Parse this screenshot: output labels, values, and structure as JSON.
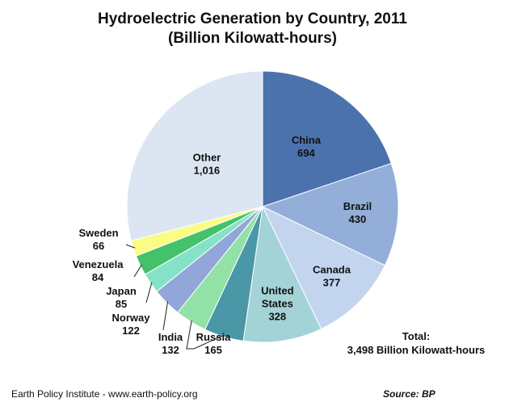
{
  "title": {
    "line1": "Hydroelectric Generation by Country, 2011",
    "line2": "(Billion Kilowatt-hours)"
  },
  "total": {
    "label": "Total:",
    "value": "3,498 Billion Kilowatt-hours"
  },
  "footer": {
    "credit": "Earth Policy Institute - www.earth-policy.org",
    "source": "Source: BP"
  },
  "chart_data": {
    "type": "pie",
    "title": "Hydroelectric Generation by Country, 2011",
    "subtitle": "(Billion Kilowatt-hours)",
    "unit": "Billion Kilowatt-hours",
    "start_angle": "12 o'clock",
    "direction": "clockwise",
    "slices": [
      {
        "name": "China",
        "value": 694,
        "value_label": "694",
        "color": "#4c72ae"
      },
      {
        "name": "Brazil",
        "value": 430,
        "value_label": "430",
        "color": "#92aed9"
      },
      {
        "name": "Canada",
        "value": 377,
        "value_label": "377",
        "color": "#c3d5ee"
      },
      {
        "name": "United States",
        "name_lines": [
          "United",
          "States"
        ],
        "value": 328,
        "value_label": "328",
        "color": "#a3d3d6"
      },
      {
        "name": "Russia",
        "value": 165,
        "value_label": "165",
        "color": "#4a97a7"
      },
      {
        "name": "India",
        "value": 132,
        "value_label": "132",
        "color": "#92e2a7"
      },
      {
        "name": "Norway",
        "value": 122,
        "value_label": "122",
        "color": "#92a6d9"
      },
      {
        "name": "Japan",
        "value": 85,
        "value_label": "85",
        "color": "#86e2c7"
      },
      {
        "name": "Venezuela",
        "value": 84,
        "value_label": "84",
        "color": "#43c16b"
      },
      {
        "name": "Sweden",
        "value": 66,
        "value_label": "66",
        "color": "#fafc84"
      },
      {
        "name": "Other",
        "value": 1016,
        "value_label": "1,016",
        "color": "#dce6f2"
      }
    ]
  }
}
